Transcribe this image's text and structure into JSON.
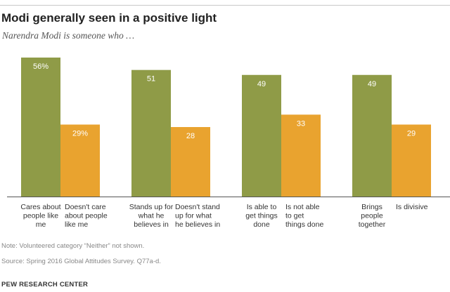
{
  "title": "Modi generally seen in a positive light",
  "subtitle": "Narendra Modi is someone who …",
  "note": "Note: Volunteered category “Neither” not shown.",
  "source": "Source: Spring 2016 Global Attitudes Survey. Q77a-d.",
  "brand": "PEW RESEARCH CENTER",
  "colors": {
    "positive": "#8f9b47",
    "negative": "#e9a32f",
    "axis": "#555555",
    "value_text_light": "#ffffff",
    "value_text_dark": "#ffffff"
  },
  "chart_data": {
    "type": "bar",
    "title": "Modi generally seen in a positive light",
    "subtitle": "Narendra Modi is someone who …",
    "ylim": [
      0,
      56
    ],
    "grid": false,
    "bars": [
      {
        "label": [
          "Cares about",
          "people like",
          "me"
        ],
        "value": 56,
        "display": "56%",
        "kind": "positive"
      },
      {
        "label": [
          "Doesn't care",
          "about people",
          "like me"
        ],
        "value": 29,
        "display": "29%",
        "kind": "negative"
      },
      {
        "label": [
          "Stands up for",
          "what he",
          "believes in"
        ],
        "value": 51,
        "display": "51",
        "kind": "positive"
      },
      {
        "label": [
          "Doesn't stand",
          "up for what",
          "he believes in"
        ],
        "value": 28,
        "display": "28",
        "kind": "negative"
      },
      {
        "label": [
          "Is able to",
          "get things",
          "done"
        ],
        "value": 49,
        "display": "49",
        "kind": "positive"
      },
      {
        "label": [
          "Is not able",
          "to get",
          "things done"
        ],
        "value": 33,
        "display": "33",
        "kind": "negative"
      },
      {
        "label": [
          "Brings",
          "people",
          "together"
        ],
        "value": 49,
        "display": "49",
        "kind": "positive"
      },
      {
        "label": [
          "Is divisive"
        ],
        "value": 29,
        "display": "29",
        "kind": "negative"
      }
    ]
  }
}
